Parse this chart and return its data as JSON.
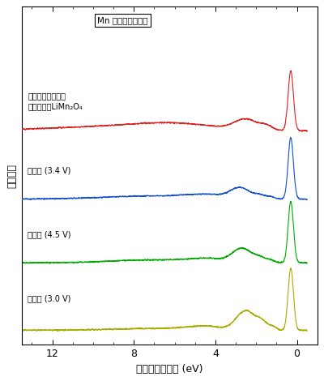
{
  "legend_label": "Mn 発光スペクトル",
  "xlabel": "エネルギー損失 (eV)",
  "ylabel": "発光強度",
  "xlim_left": 13.5,
  "xlim_right": -1.0,
  "ylim_bottom": -0.2,
  "ylim_top": 5.1,
  "xticks": [
    12,
    8,
    4,
    0
  ],
  "labels": [
    "電解液に洸す前の\n初期状態のLiMn₂O₄",
    "充電前 (3.4 V)",
    "充電時 (4.5 V)",
    "放電時 (3.0 V)"
  ],
  "colors": [
    "#dd2020",
    "#1050cc",
    "#00aa00",
    "#aaaa00"
  ],
  "offsets": [
    3.1,
    2.05,
    1.05,
    0.0
  ],
  "noise_scale": 0.025,
  "line_width": 0.8,
  "background_color": "#ffffff"
}
